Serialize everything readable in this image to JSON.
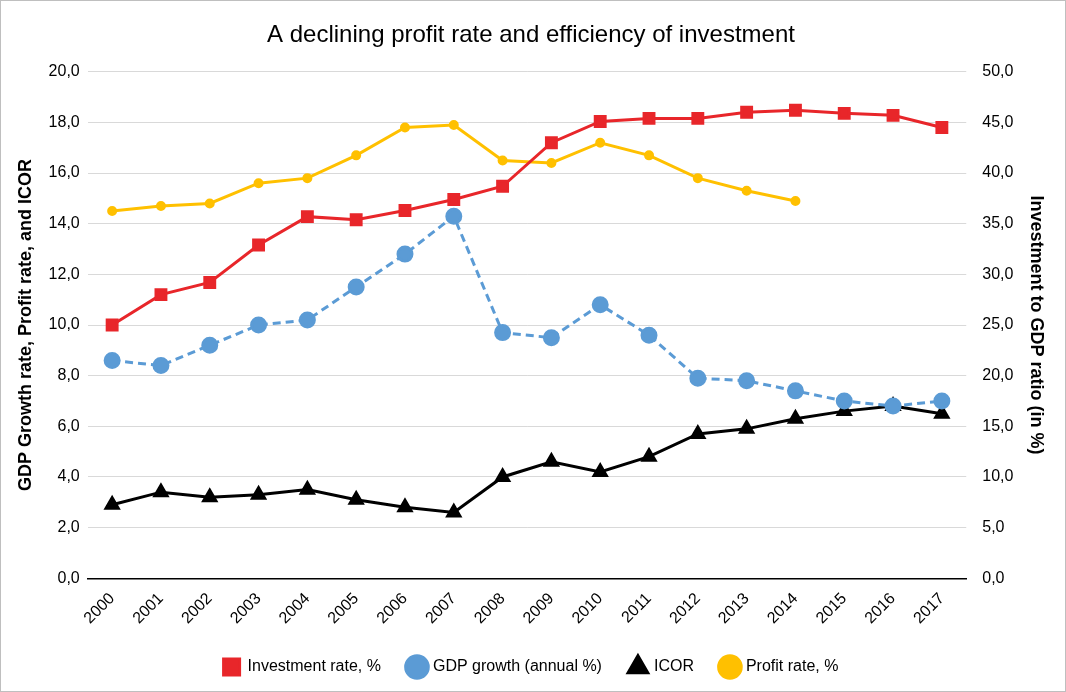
{
  "chart_data": {
    "type": "line",
    "title": "A declining profit rate and efficiency of investment",
    "y_label": "GDP Growth rate, Profit rate, and ICOR",
    "y2_label": "Investment to GDP ratio (in %)",
    "categories": [
      "2000",
      "2001",
      "2002",
      "2003",
      "2004",
      "2005",
      "2006",
      "2007",
      "2008",
      "2009",
      "2010",
      "2011",
      "2012",
      "2013",
      "2014",
      "2015",
      "2016",
      "2017"
    ],
    "series": [
      {
        "name": "GDP growth (annual %)",
        "color": "#5b9bd5",
        "marker": "circle",
        "line_style": "dashed",
        "values": [
          8.6,
          8.4,
          9.2,
          10.0,
          10.2,
          11.5,
          12.8,
          14.3,
          9.7,
          9.5,
          10.8,
          9.6,
          7.9,
          7.8,
          7.4,
          7.0,
          6.8,
          7.0
        ]
      },
      {
        "name": "ICOR",
        "color": "#000000",
        "marker": "triangle",
        "line_style": "solid",
        "values": [
          2.9,
          3.4,
          3.2,
          3.3,
          3.5,
          3.1,
          2.8,
          2.6,
          4.0,
          4.6,
          4.2,
          4.8,
          5.7,
          5.9,
          6.3,
          6.6,
          6.8,
          6.5
        ]
      },
      {
        "name": "Profit rate, %",
        "color": "#ffc000",
        "marker": "dot",
        "line_style": "solid",
        "values": [
          14.5,
          14.7,
          14.8,
          15.6,
          15.8,
          16.7,
          17.8,
          17.9,
          16.5,
          16.4,
          17.2,
          16.7,
          15.8,
          15.3,
          14.9,
          null,
          null,
          null
        ]
      },
      {
        "name": "Investment rate, %",
        "color": "#e8262a",
        "marker": "square",
        "line_style": "solid",
        "axis": "y2",
        "values": [
          25.0,
          28.0,
          29.2,
          32.9,
          35.7,
          35.4,
          36.3,
          37.4,
          38.7,
          43.0,
          45.1,
          45.4,
          45.4,
          46.0,
          46.2,
          45.9,
          45.7,
          44.5
        ]
      }
    ],
    "ylim": [
      0,
      20
    ],
    "yticks": [
      {
        "value": 0,
        "label": "0,0"
      },
      {
        "value": 2,
        "label": "2,0"
      },
      {
        "value": 4,
        "label": "4,0"
      },
      {
        "value": 6,
        "label": "6,0"
      },
      {
        "value": 8,
        "label": "8,0"
      },
      {
        "value": 10,
        "label": "10,0"
      },
      {
        "value": 12,
        "label": "12,0"
      },
      {
        "value": 14,
        "label": "14,0"
      },
      {
        "value": 16,
        "label": "16,0"
      },
      {
        "value": 18,
        "label": "18,0"
      },
      {
        "value": 20,
        "label": "20,0"
      }
    ],
    "y2lim": [
      0,
      50
    ],
    "y2ticks": [
      {
        "value": 0,
        "label": "0,0"
      },
      {
        "value": 5,
        "label": "5,0"
      },
      {
        "value": 10,
        "label": "10,0"
      },
      {
        "value": 15,
        "label": "15,0"
      },
      {
        "value": 20,
        "label": "20,0"
      },
      {
        "value": 25,
        "label": "25,0"
      },
      {
        "value": 30,
        "label": "30,0"
      },
      {
        "value": 35,
        "label": "35,0"
      },
      {
        "value": 40,
        "label": "40,0"
      },
      {
        "value": 45,
        "label": "45,0"
      },
      {
        "value": 50,
        "label": "50,0"
      }
    ],
    "grid": true,
    "legend": "bottom"
  }
}
